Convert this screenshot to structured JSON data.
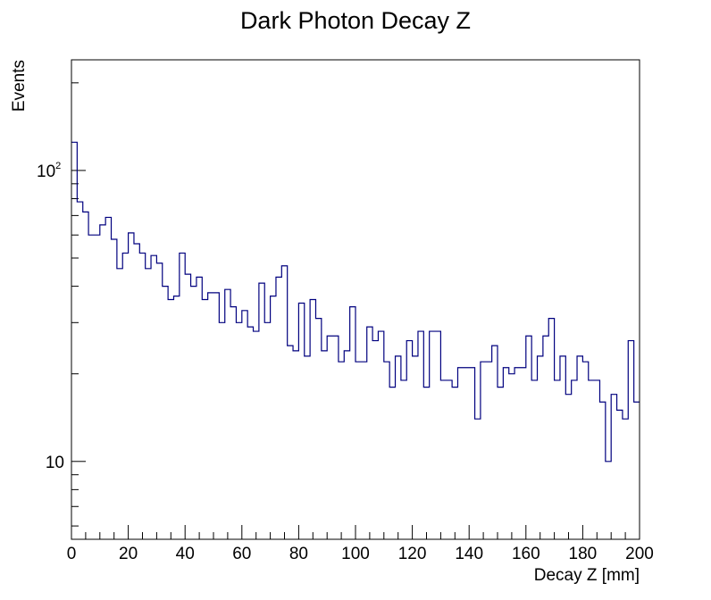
{
  "chart_data": {
    "type": "histogram",
    "title": "Dark Photon Decay Z",
    "xlabel": "Decay Z [mm]",
    "ylabel": "Events",
    "xlim": [
      0,
      200
    ],
    "ylim": [
      5.4,
      240
    ],
    "yscale": "log",
    "bin_width": 2,
    "series_color": "#00007f",
    "x_tick_labels": [
      "0",
      "20",
      "40",
      "60",
      "80",
      "100",
      "120",
      "140",
      "160",
      "180",
      "200"
    ],
    "y_tick_labels": [
      {
        "value": 10,
        "base": "10",
        "exp": ""
      },
      {
        "value": 100,
        "base": "10",
        "exp": "2"
      }
    ],
    "values": [
      125,
      78,
      72,
      60,
      60,
      65,
      69,
      58,
      46,
      52,
      61,
      56,
      52,
      46,
      51,
      48,
      40,
      36,
      37,
      52,
      44,
      40,
      43,
      36,
      38,
      38,
      30,
      39,
      34,
      30,
      33,
      29,
      28,
      41,
      30,
      37,
      43,
      47,
      25,
      24,
      35,
      23,
      36,
      31,
      24,
      27,
      27,
      22,
      24,
      34,
      22,
      22,
      29,
      26,
      28,
      22,
      18,
      23,
      19,
      26,
      23,
      28,
      18,
      28,
      28,
      19,
      19,
      18,
      21,
      21,
      21,
      14,
      22,
      22,
      25,
      18,
      21,
      20,
      21,
      21,
      27,
      19,
      23,
      27,
      31,
      19,
      23,
      17,
      19,
      23,
      22,
      19,
      19,
      16,
      10,
      17,
      15,
      14,
      26,
      16
    ]
  }
}
